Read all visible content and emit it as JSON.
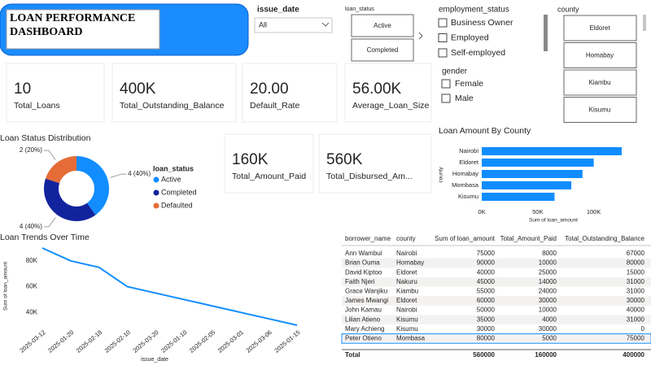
{
  "header": {
    "title": "LOAN PERFORMANCE DASHBOARD"
  },
  "filters": [
    {
      "label": "issue_date",
      "value": "All"
    },
    {
      "label": "loan_status",
      "options": [
        "Active",
        "Completed"
      ]
    },
    {
      "label": "employment_status",
      "options": [
        "Business Owner",
        "Employed",
        "Self-employed"
      ]
    },
    {
      "label": "gender",
      "options": [
        "Female",
        "Male"
      ]
    },
    {
      "label": "county",
      "options": [
        "Eldoret",
        "Homabay",
        "Kiambu",
        "Kisumu"
      ]
    }
  ],
  "kpis": [
    {
      "value": "10",
      "label": "Total_Loans"
    },
    {
      "value": "400K",
      "label": "Total_Outstanding_Balance"
    },
    {
      "value": "20.00",
      "label": "Default_Rate"
    },
    {
      "value": "56.00K",
      "label": "Average_Loan_Size"
    },
    {
      "value": "160K",
      "label": "Total_Amount_Paid"
    },
    {
      "value": "560K",
      "label": "Total_Disbursed_Am..."
    }
  ],
  "chart_data": [
    {
      "type": "donut",
      "title": "Loan Status Distribution",
      "legend_title": "loan_status",
      "categories": [
        "Active",
        "Completed",
        "Defaulted"
      ],
      "values": [
        4,
        4,
        2
      ],
      "value_labels": [
        "4 (40%)",
        "4 (40%)",
        "2 (20%)"
      ],
      "colors": [
        "#118DFF",
        "#12239E",
        "#E66C37"
      ]
    },
    {
      "type": "bar",
      "orientation": "horizontal",
      "title": "Loan Amount By County",
      "xlabel": "Sum of loan_amount",
      "ylabel": "county",
      "categories": [
        "Nairobi",
        "Eldoret",
        "Homabay",
        "Mombasa",
        "Kisumu"
      ],
      "values": [
        125000,
        100000,
        90000,
        80000,
        65000
      ],
      "color": "#118DFF",
      "xlim": [
        0,
        125000
      ],
      "xticks": [
        {
          "value": 0,
          "label": "0K"
        },
        {
          "value": 50000,
          "label": "50K"
        },
        {
          "value": 100000,
          "label": "100K"
        }
      ]
    },
    {
      "type": "line",
      "title": "Loan Trends Over Time",
      "xlabel": "issue_date",
      "ylabel": "Sum of loan_amount",
      "categories": [
        "2025-03-12",
        "2025-01-20",
        "2025-02-18",
        "2025-02-10",
        "2025-03-20",
        "2025-01-10",
        "2025-02-05",
        "2025-03-01",
        "2025-03-06",
        "2025-01-15"
      ],
      "values": [
        90000,
        80000,
        75000,
        60000,
        55000,
        50000,
        45000,
        40000,
        35000,
        30000
      ],
      "color": "#118DFF",
      "ylim": [
        30000,
        90000
      ],
      "yticks": [
        {
          "value": 40000,
          "label": "40K"
        },
        {
          "value": 60000,
          "label": "60K"
        },
        {
          "value": 80000,
          "label": "80K"
        }
      ]
    }
  ],
  "table": {
    "columns": [
      "borrower_name",
      "county",
      "Sum of loan_amount",
      "Total_Amount_Paid",
      "Total_Outstanding_Balance"
    ],
    "rows": [
      [
        "Ann Wambui",
        "Nairobi",
        75000,
        8000,
        67000
      ],
      [
        "Brian Ouma",
        "Homabay",
        90000,
        10000,
        80000
      ],
      [
        "David Kiptoo",
        "Eldoret",
        40000,
        25000,
        15000
      ],
      [
        "Faith Njeri",
        "Nakuru",
        45000,
        14000,
        31000
      ],
      [
        "Grace Wanjiku",
        "Kiambu",
        55000,
        24000,
        31000
      ],
      [
        "James Mwangi",
        "Eldoret",
        60000,
        30000,
        30000
      ],
      [
        "John Kamau",
        "Nairobi",
        50000,
        10000,
        40000
      ],
      [
        "Lilian Atieno",
        "Kisumu",
        35000,
        4000,
        31000
      ],
      [
        "Mary Achieng",
        "Kisumu",
        30000,
        30000,
        0
      ],
      [
        "Peter Otieno",
        "Mombasa",
        80000,
        5000,
        75000
      ]
    ],
    "total": {
      "label": "Total",
      "values": [
        560000,
        160000,
        400000
      ]
    }
  }
}
